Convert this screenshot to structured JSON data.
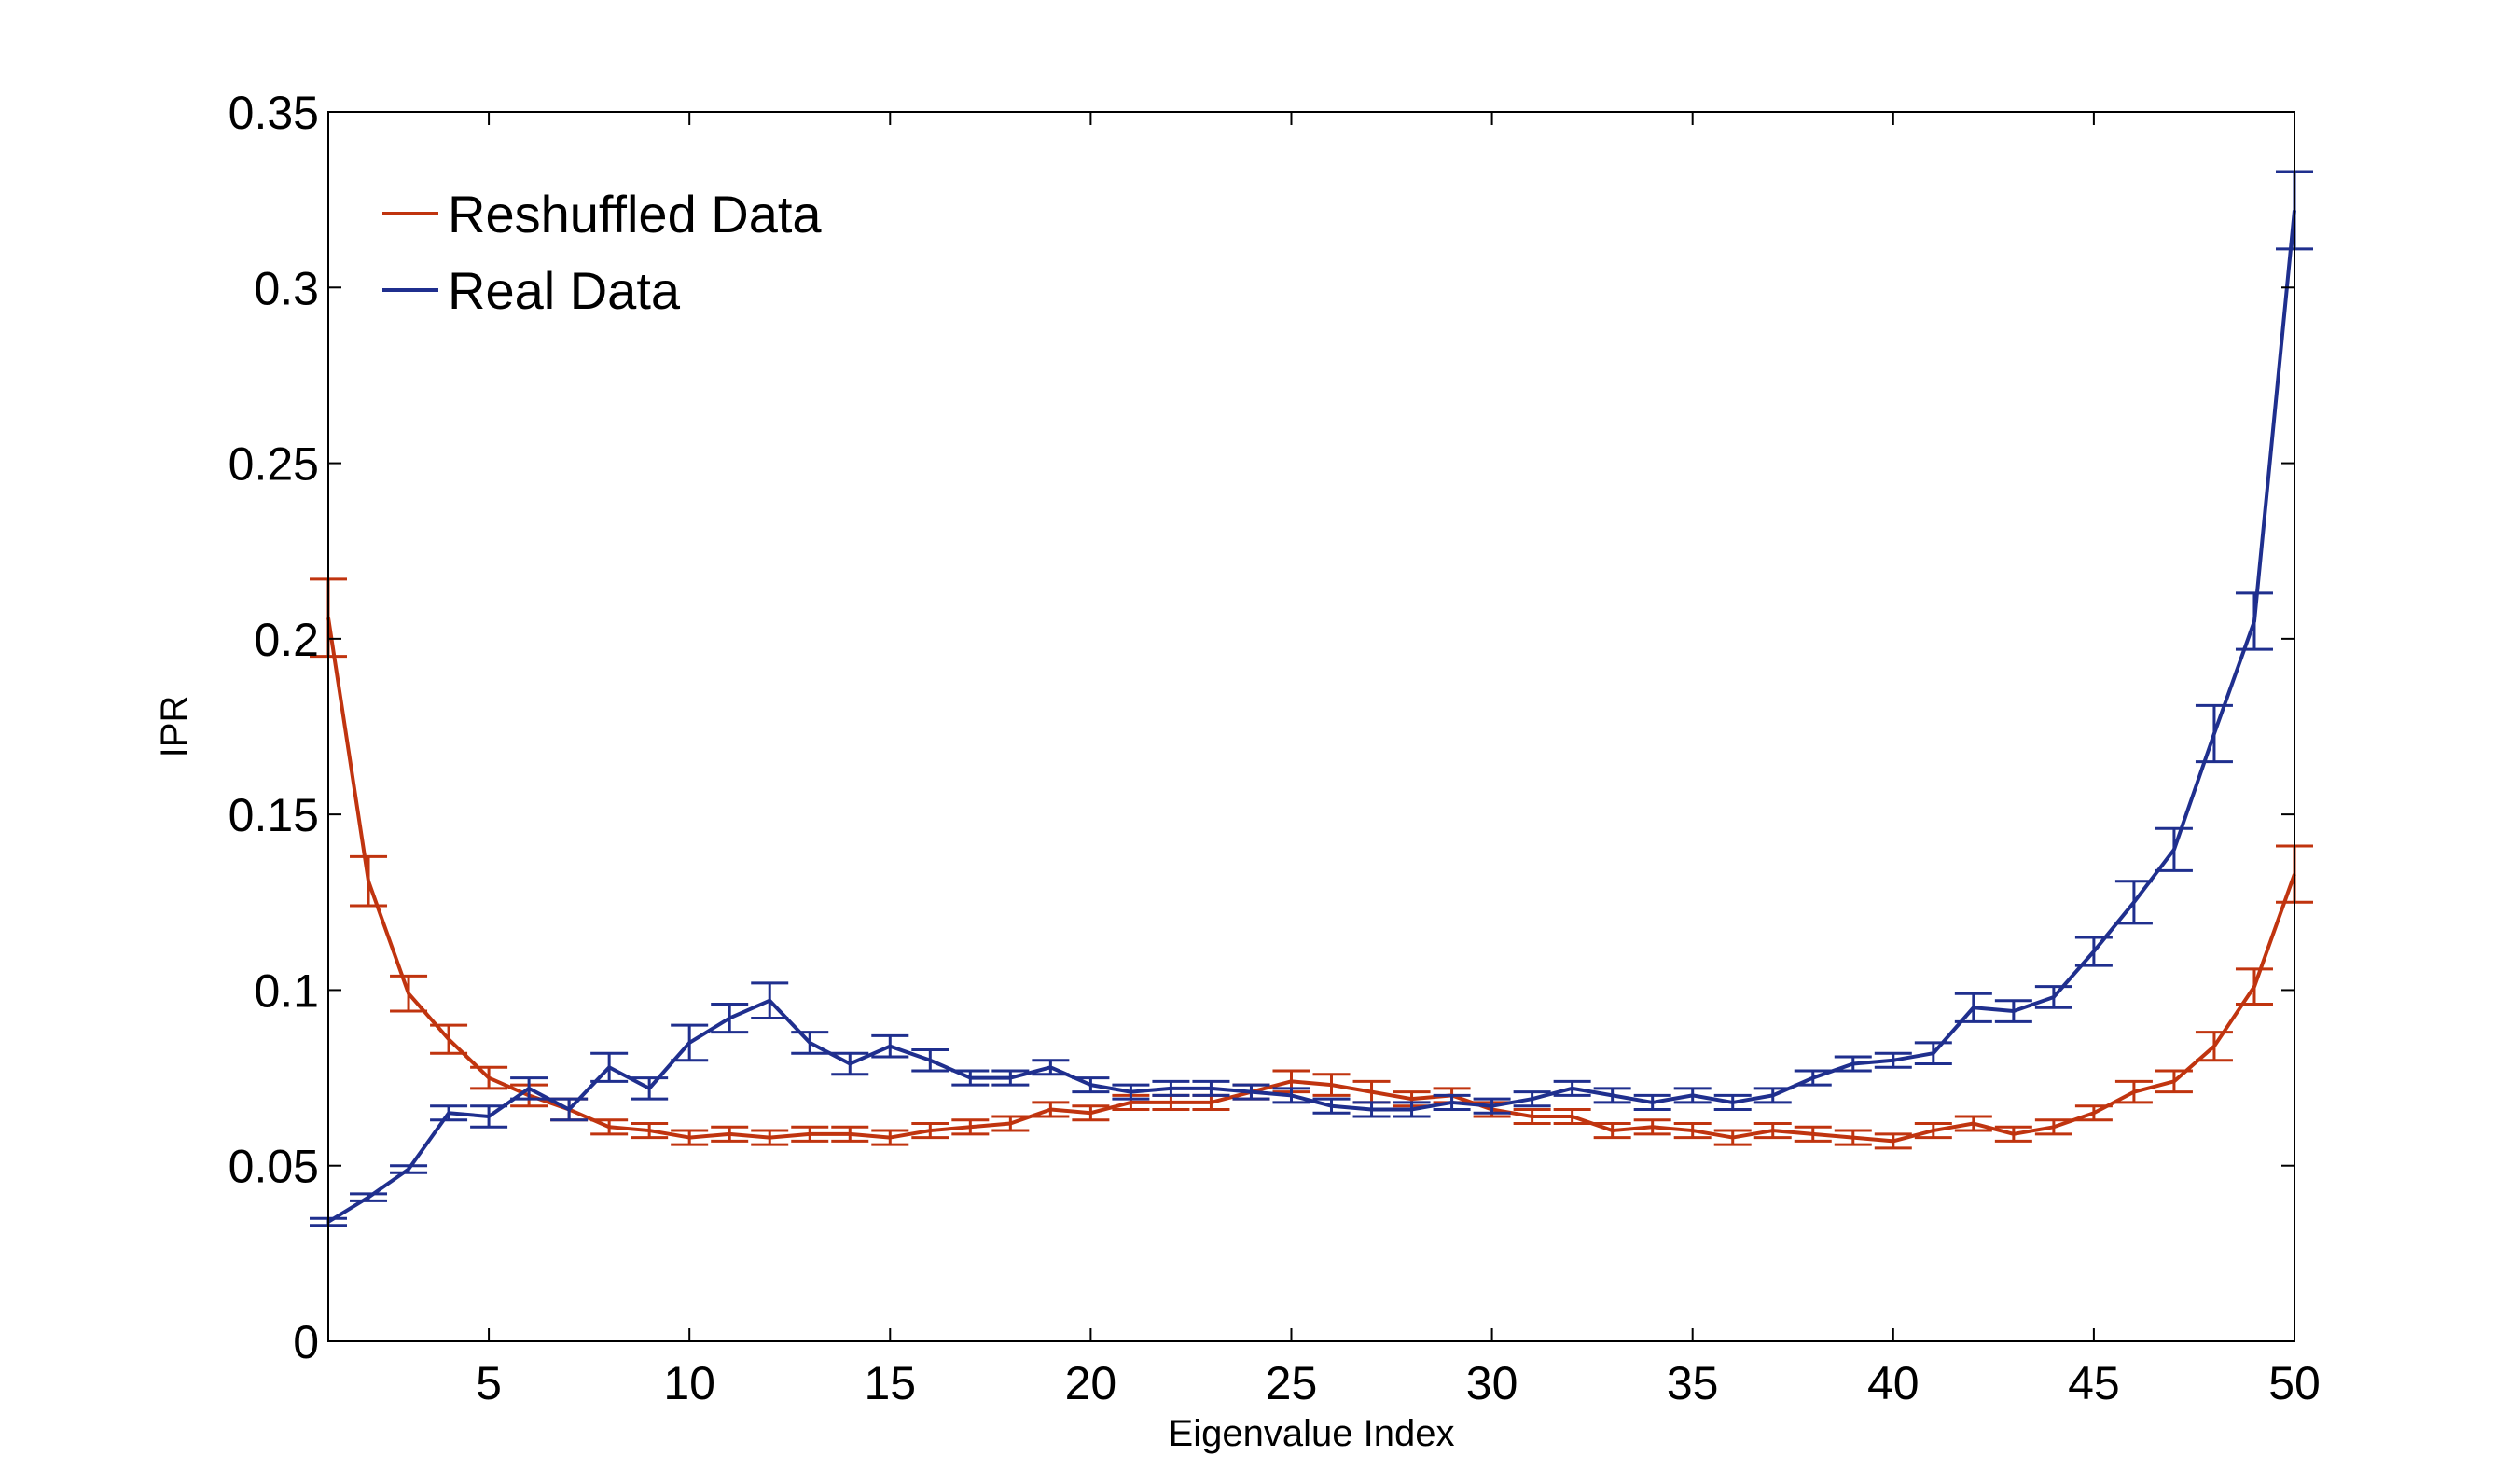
{
  "chart_data": {
    "type": "line",
    "title": "",
    "xlabel": "Eigenvalue Index",
    "ylabel": "IPR",
    "xlim": [
      1,
      50
    ],
    "ylim": [
      0,
      0.35
    ],
    "xticks": [
      5,
      10,
      15,
      20,
      25,
      30,
      35,
      40,
      45,
      50
    ],
    "xtick_labels": [
      "5",
      "10",
      "15",
      "20",
      "25",
      "30",
      "35",
      "40",
      "45",
      "50"
    ],
    "yticks": [
      0,
      0.05,
      0.1,
      0.15,
      0.2,
      0.25,
      0.3,
      0.35
    ],
    "ytick_labels": [
      "0",
      "0.05",
      "0.1",
      "0.15",
      "0.2",
      "0.25",
      "0.3",
      "0.35"
    ],
    "grid": false,
    "legend_position": "top-left",
    "x": [
      1,
      2,
      3,
      4,
      5,
      6,
      7,
      8,
      9,
      10,
      11,
      12,
      13,
      14,
      15,
      16,
      17,
      18,
      19,
      20,
      21,
      22,
      23,
      24,
      25,
      26,
      27,
      28,
      29,
      30,
      31,
      32,
      33,
      34,
      35,
      36,
      37,
      38,
      39,
      40,
      41,
      42,
      43,
      44,
      45,
      46,
      47,
      48,
      49,
      50
    ],
    "series": [
      {
        "name": "Reshuffled Data",
        "color": "#c0340f",
        "values": [
          0.206,
          0.131,
          0.099,
          0.086,
          0.075,
          0.07,
          0.066,
          0.061,
          0.06,
          0.058,
          0.059,
          0.058,
          0.059,
          0.059,
          0.058,
          0.06,
          0.061,
          0.062,
          0.066,
          0.065,
          0.068,
          0.068,
          0.068,
          0.071,
          0.074,
          0.073,
          0.071,
          0.069,
          0.07,
          0.066,
          0.064,
          0.064,
          0.06,
          0.061,
          0.06,
          0.058,
          0.06,
          0.059,
          0.058,
          0.057,
          0.06,
          0.062,
          0.059,
          0.061,
          0.065,
          0.071,
          0.074,
          0.084,
          0.101,
          0.133
        ],
        "errors": [
          0.011,
          0.007,
          0.005,
          0.004,
          0.003,
          0.003,
          0.003,
          0.002,
          0.002,
          0.002,
          0.002,
          0.002,
          0.002,
          0.002,
          0.002,
          0.002,
          0.002,
          0.002,
          0.002,
          0.002,
          0.002,
          0.002,
          0.002,
          0.002,
          0.003,
          0.003,
          0.003,
          0.002,
          0.002,
          0.002,
          0.002,
          0.002,
          0.002,
          0.002,
          0.002,
          0.002,
          0.002,
          0.002,
          0.002,
          0.002,
          0.002,
          0.002,
          0.002,
          0.002,
          0.002,
          0.003,
          0.003,
          0.004,
          0.005,
          0.008
        ]
      },
      {
        "name": "Real Data",
        "color": "#1f2f8e",
        "values": [
          0.034,
          0.041,
          0.049,
          0.065,
          0.064,
          0.072,
          0.066,
          0.078,
          0.072,
          0.085,
          0.092,
          0.097,
          0.085,
          0.079,
          0.084,
          0.08,
          0.075,
          0.075,
          0.078,
          0.073,
          0.071,
          0.072,
          0.072,
          0.071,
          0.07,
          0.067,
          0.066,
          0.066,
          0.068,
          0.067,
          0.069,
          0.072,
          0.07,
          0.068,
          0.07,
          0.068,
          0.07,
          0.075,
          0.079,
          0.08,
          0.082,
          0.095,
          0.094,
          0.098,
          0.111,
          0.125,
          0.14,
          0.173,
          0.205,
          0.322
        ],
        "errors": [
          0.001,
          0.001,
          0.001,
          0.002,
          0.003,
          0.003,
          0.003,
          0.004,
          0.003,
          0.005,
          0.004,
          0.005,
          0.003,
          0.003,
          0.003,
          0.003,
          0.002,
          0.002,
          0.002,
          0.002,
          0.002,
          0.002,
          0.002,
          0.002,
          0.002,
          0.002,
          0.002,
          0.002,
          0.002,
          0.002,
          0.002,
          0.002,
          0.002,
          0.002,
          0.002,
          0.002,
          0.002,
          0.002,
          0.002,
          0.002,
          0.003,
          0.004,
          0.003,
          0.003,
          0.004,
          0.006,
          0.006,
          0.008,
          0.008,
          0.011
        ]
      }
    ]
  }
}
